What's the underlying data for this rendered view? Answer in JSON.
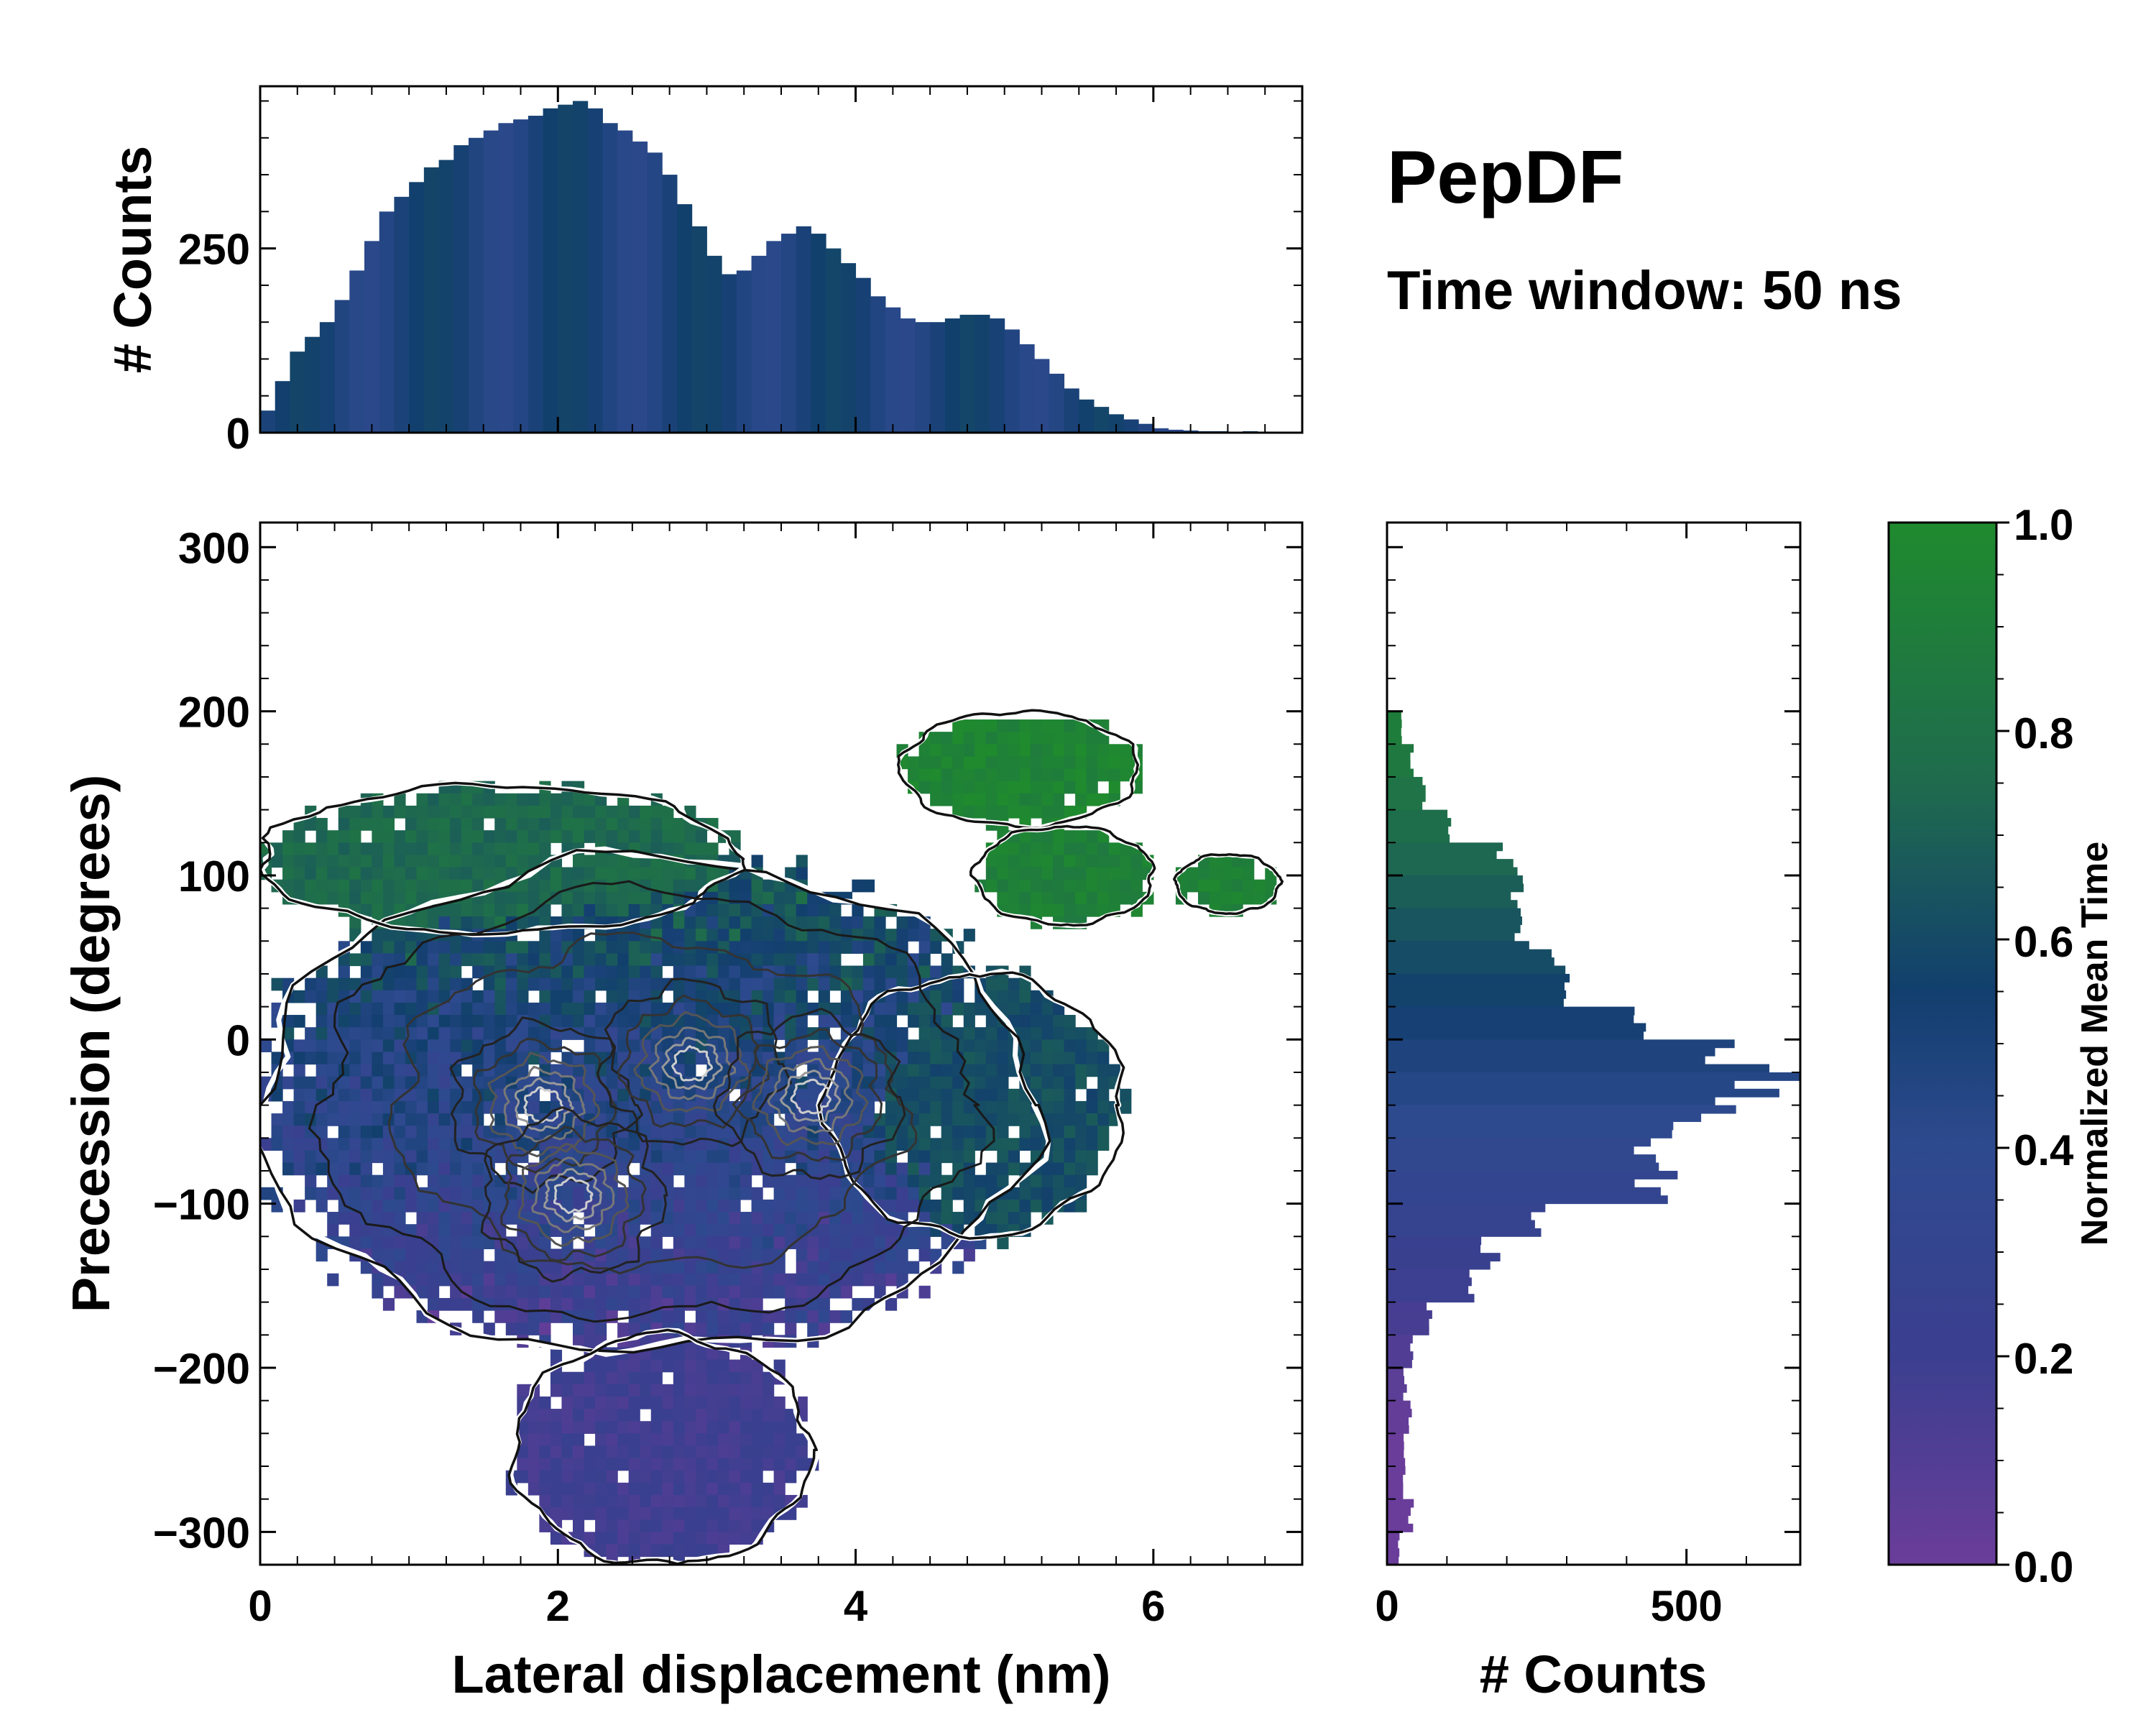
{
  "chart_data": {
    "type": "heatmap",
    "title": "PepDF",
    "subtitle": "Time window: 50 ns",
    "xlabel": "Lateral displacement (nm)",
    "ylabel": "Precession (degrees)",
    "xlim": [
      0,
      7
    ],
    "ylim": [
      -320,
      315
    ],
    "x_ticks": [
      0,
      2,
      4,
      6
    ],
    "y_ticks": [
      300,
      200,
      100,
      0,
      -100,
      -200,
      -300
    ],
    "top_hist": {
      "ylabel": "# Counts",
      "ylim": [
        0,
        470
      ],
      "y_ticks": [
        0,
        250
      ],
      "x": [
        0.05,
        0.15,
        0.25,
        0.35,
        0.45,
        0.55,
        0.65,
        0.75,
        0.85,
        0.95,
        1.05,
        1.15,
        1.25,
        1.35,
        1.45,
        1.55,
        1.65,
        1.75,
        1.85,
        1.95,
        2.05,
        2.15,
        2.25,
        2.35,
        2.45,
        2.55,
        2.65,
        2.75,
        2.85,
        2.95,
        3.05,
        3.15,
        3.25,
        3.35,
        3.45,
        3.55,
        3.65,
        3.75,
        3.85,
        3.95,
        4.05,
        4.15,
        4.25,
        4.35,
        4.45,
        4.55,
        4.65,
        4.75,
        4.85,
        4.95,
        5.05,
        5.15,
        5.25,
        5.35,
        5.45,
        5.55,
        5.65,
        5.75,
        5.85,
        5.95,
        6.05,
        6.15,
        6.25,
        6.35,
        6.45,
        6.55,
        6.65,
        6.75,
        6.85,
        6.95
      ],
      "counts": [
        30,
        70,
        110,
        130,
        150,
        180,
        220,
        260,
        300,
        320,
        340,
        360,
        370,
        390,
        400,
        410,
        420,
        425,
        430,
        440,
        445,
        450,
        440,
        420,
        410,
        395,
        380,
        350,
        310,
        280,
        240,
        215,
        220,
        240,
        260,
        270,
        280,
        270,
        250,
        230,
        210,
        185,
        170,
        155,
        150,
        150,
        155,
        160,
        160,
        155,
        140,
        120,
        100,
        80,
        60,
        45,
        35,
        25,
        18,
        12,
        6,
        4,
        3,
        2,
        2,
        1,
        2,
        1,
        1,
        0
      ]
    },
    "right_hist": {
      "xlabel": "# Counts",
      "xlim": [
        0,
        690
      ],
      "x_ticks": [
        0,
        500
      ],
      "y": [
        190,
        170,
        150,
        130,
        110,
        90,
        70,
        50,
        30,
        10,
        -10,
        -30,
        -50,
        -70,
        -90,
        -110,
        -130,
        -150,
        -170,
        -190,
        -210,
        -230,
        -250,
        -270,
        -290,
        -310
      ],
      "counts": [
        25,
        40,
        60,
        110,
        200,
        230,
        240,
        270,
        300,
        400,
        570,
        620,
        520,
        460,
        470,
        270,
        170,
        130,
        70,
        40,
        30,
        40,
        30,
        30,
        40,
        20
      ]
    },
    "colorbar": {
      "label": "Normalized Mean Time",
      "range": [
        0,
        1
      ],
      "ticks": [
        "0.0",
        "0.2",
        "0.4",
        "0.6",
        "0.8",
        "1.0"
      ],
      "colors": [
        "#6a3d9a",
        "#3b3f8f",
        "#2e4a8f",
        "#123f6e",
        "#1f6b4e",
        "#1f8a2e"
      ]
    },
    "heatmap_regions": [
      {
        "name": "main-cloud",
        "cx": 2.6,
        "cy": -40,
        "rx": 2.6,
        "ry": 150,
        "mean_time": 0.42
      },
      {
        "name": "upper-left-band",
        "cx": 1.6,
        "cy": 110,
        "rx": 1.6,
        "ry": 45,
        "mean_time": 0.75
      },
      {
        "name": "top-right-island",
        "cx": 5.1,
        "cy": 165,
        "rx": 0.8,
        "ry": 35,
        "mean_time": 0.95
      },
      {
        "name": "right-island",
        "cx": 5.4,
        "cy": 100,
        "rx": 0.6,
        "ry": 30,
        "mean_time": 0.92
      },
      {
        "name": "far-right-island",
        "cx": 6.5,
        "cy": 95,
        "rx": 0.35,
        "ry": 18,
        "mean_time": 0.93
      },
      {
        "name": "lower-lobe",
        "cx": 2.7,
        "cy": -250,
        "rx": 1.0,
        "ry": 70,
        "mean_time": 0.18
      },
      {
        "name": "right-mid-lobe",
        "cx": 4.8,
        "cy": -40,
        "rx": 1.0,
        "ry": 80,
        "mean_time": 0.62
      }
    ],
    "density_peaks": [
      {
        "x": 1.9,
        "y": -40
      },
      {
        "x": 2.1,
        "y": -95
      },
      {
        "x": 2.9,
        "y": -15
      },
      {
        "x": 3.7,
        "y": -35
      }
    ]
  }
}
